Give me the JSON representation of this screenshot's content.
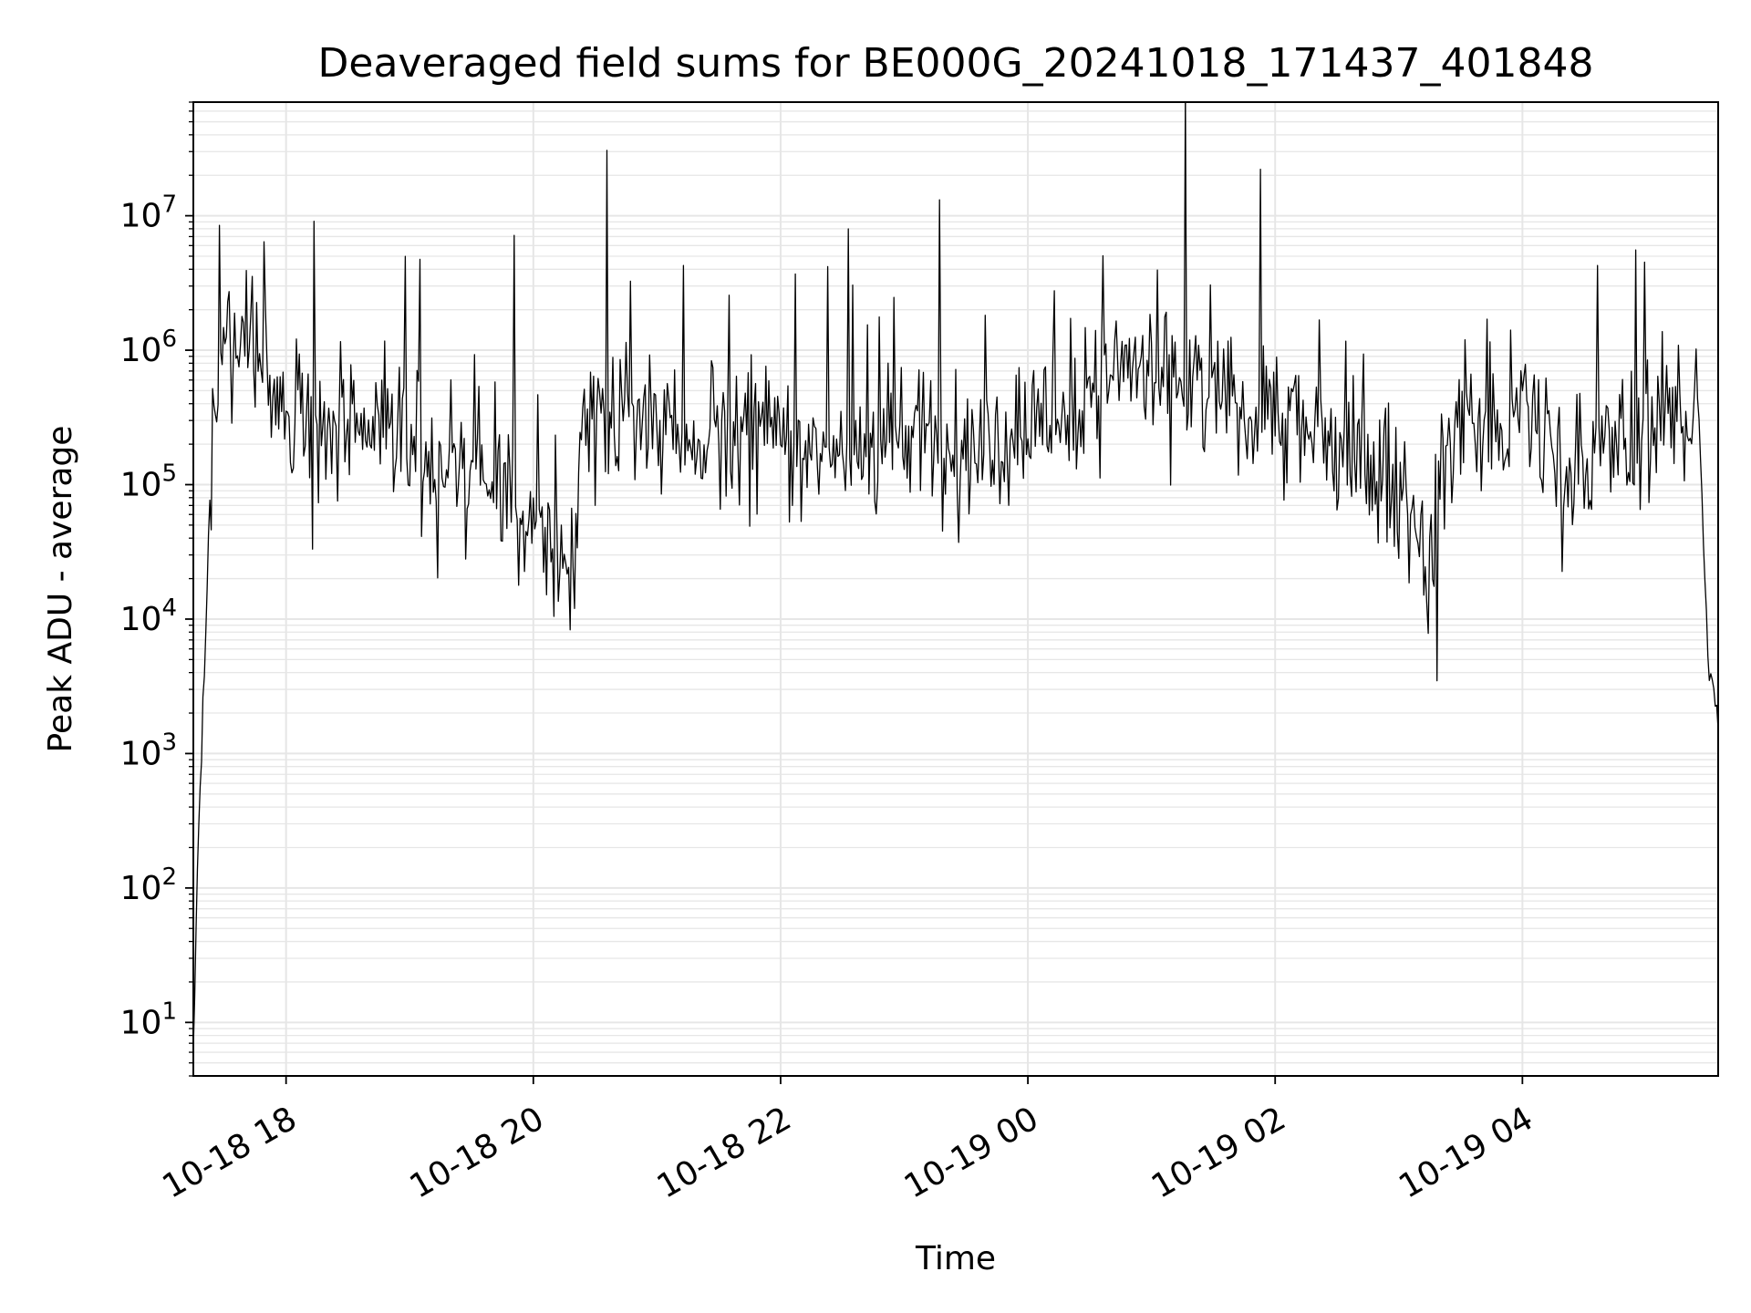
{
  "chart_data": {
    "type": "line",
    "title": "Deaveraged field sums for BE000G_20241018_171437_401848",
    "xlabel": "Time",
    "ylabel": "Peak ADU - average",
    "yscale": "log",
    "ylim": [
      4,
      70000000
    ],
    "xlim": [
      "2024-10-18 17:15",
      "2024-10-19 05:35"
    ],
    "grid": true,
    "line_color": "#000000",
    "grid_color": "#e6e6e6",
    "x_ticks": [
      {
        "t": "2024-10-18 18:00",
        "label": "10-18 18"
      },
      {
        "t": "2024-10-18 20:00",
        "label": "10-18 20"
      },
      {
        "t": "2024-10-18 22:00",
        "label": "10-18 22"
      },
      {
        "t": "2024-10-19 00:00",
        "label": "10-19 00"
      },
      {
        "t": "2024-10-19 02:00",
        "label": "10-19 02"
      },
      {
        "t": "2024-10-19 04:00",
        "label": "10-19 04"
      }
    ],
    "y_ticks": [
      {
        "value": 10,
        "base": "10",
        "exp": "1"
      },
      {
        "value": 100,
        "base": "10",
        "exp": "2"
      },
      {
        "value": 1000,
        "base": "10",
        "exp": "3"
      },
      {
        "value": 10000,
        "base": "10",
        "exp": "4"
      },
      {
        "value": 100000,
        "base": "10",
        "exp": "5"
      },
      {
        "value": 1000000,
        "base": "10",
        "exp": "6"
      },
      {
        "value": 10000000,
        "base": "10",
        "exp": "7"
      }
    ],
    "series": [
      {
        "x": [
          "2024-10-18 17:15",
          "2024-10-18 17:17",
          "2024-10-18 17:19",
          "2024-10-18 17:21",
          "2024-10-18 17:23",
          "2024-10-18 17:27",
          "2024-10-18 17:31",
          "2024-10-18 17:35",
          "2024-10-18 17:40",
          "2024-10-18 17:45",
          "2024-10-18 17:50",
          "2024-10-18 17:55",
          "2024-10-18 18:00",
          "2024-10-18 18:10",
          "2024-10-18 18:20",
          "2024-10-18 18:30",
          "2024-10-18 18:45",
          "2024-10-18 19:00",
          "2024-10-18 19:15",
          "2024-10-18 19:30",
          "2024-10-18 19:45",
          "2024-10-18 19:55",
          "2024-10-18 20:10",
          "2024-10-18 20:20",
          "2024-10-18 20:24",
          "2024-10-18 20:30",
          "2024-10-18 20:45",
          "2024-10-18 21:00",
          "2024-10-18 21:15",
          "2024-10-18 21:30",
          "2024-10-18 21:45",
          "2024-10-18 22:00",
          "2024-10-18 22:15",
          "2024-10-18 22:30",
          "2024-10-18 22:45",
          "2024-10-18 23:00",
          "2024-10-18 23:15",
          "2024-10-18 23:30",
          "2024-10-18 23:45",
          "2024-10-19 00:00",
          "2024-10-19 00:15",
          "2024-10-19 00:30",
          "2024-10-19 00:45",
          "2024-10-19 01:00",
          "2024-10-19 01:15",
          "2024-10-19 01:30",
          "2024-10-19 01:45",
          "2024-10-19 02:00",
          "2024-10-19 02:15",
          "2024-10-19 02:30",
          "2024-10-19 02:45",
          "2024-10-19 03:00",
          "2024-10-19 03:10",
          "2024-10-19 03:15",
          "2024-10-19 03:20",
          "2024-10-19 03:30",
          "2024-10-19 03:45",
          "2024-10-19 04:00",
          "2024-10-19 04:15",
          "2024-10-19 04:30",
          "2024-10-19 04:45",
          "2024-10-19 05:00",
          "2024-10-19 05:10",
          "2024-10-19 05:15",
          "2024-10-19 05:20",
          "2024-10-19 05:25",
          "2024-10-19 05:30",
          "2024-10-19 05:35"
        ],
        "y": [
          5,
          150,
          1000,
          8000,
          100000,
          500000,
          900000,
          700000,
          1200000,
          2000000,
          900000,
          500000,
          400000,
          300000,
          250000,
          200000,
          250000,
          200000,
          150000,
          100000,
          80000,
          50000,
          30000,
          20000,
          400000,
          300000,
          250000,
          350000,
          300000,
          250000,
          200000,
          250000,
          200000,
          200000,
          200000,
          200000,
          250000,
          200000,
          250000,
          300000,
          350000,
          500000,
          600000,
          700000,
          500000,
          600000,
          450000,
          400000,
          300000,
          200000,
          150000,
          100000,
          50000,
          20000,
          80000,
          300000,
          250000,
          350000,
          200000,
          150000,
          200000,
          250000,
          300000,
          350000,
          400000,
          500000,
          5000,
          1500
        ]
      }
    ]
  }
}
